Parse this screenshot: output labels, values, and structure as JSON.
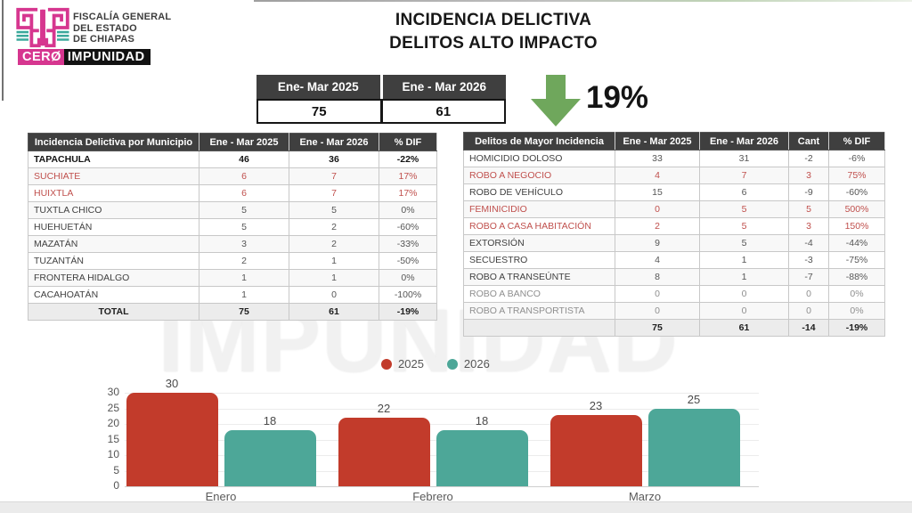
{
  "logo": {
    "org_line1": "FISCALÍA GENERAL",
    "org_line2": "DEL ESTADO",
    "org_line3": "DE CHIAPAS",
    "badge_cero": "CERØ",
    "badge_impunidad": "IMPUNIDAD"
  },
  "title": {
    "line1": "INCIDENCIA DELICTIVA",
    "line2": "DELITOS ALTO IMPACTO"
  },
  "summary": {
    "headers": [
      "Ene- Mar 2025",
      "Ene - Mar 2026"
    ],
    "values": [
      "75",
      "61"
    ],
    "change_pct": "19%",
    "direction": "down"
  },
  "municipio_table": {
    "headers": [
      "Incidencia Delictiva por Municipio",
      "Ene - Mar 2025",
      "Ene - Mar 2026",
      "% DIF"
    ],
    "rows": [
      {
        "name": "TAPACHULA",
        "v2025": "46",
        "v2026": "36",
        "dif": "-22%",
        "style": "bold"
      },
      {
        "name": "SUCHIATE",
        "v2025": "6",
        "v2026": "7",
        "dif": "17%",
        "style": "red"
      },
      {
        "name": "HUIXTLA",
        "v2025": "6",
        "v2026": "7",
        "dif": "17%",
        "style": "red"
      },
      {
        "name": "TUXTLA CHICO",
        "v2025": "5",
        "v2026": "5",
        "dif": "0%",
        "style": "normal"
      },
      {
        "name": "HUEHUETÁN",
        "v2025": "5",
        "v2026": "2",
        "dif": "-60%",
        "style": "normal"
      },
      {
        "name": "MAZATÁN",
        "v2025": "3",
        "v2026": "2",
        "dif": "-33%",
        "style": "normal"
      },
      {
        "name": "TUZANTÁN",
        "v2025": "2",
        "v2026": "1",
        "dif": "-50%",
        "style": "normal"
      },
      {
        "name": "FRONTERA HIDALGO",
        "v2025": "1",
        "v2026": "1",
        "dif": "0%",
        "style": "normal"
      },
      {
        "name": "CACAHOATÁN",
        "v2025": "1",
        "v2026": "0",
        "dif": "-100%",
        "style": "normal"
      }
    ],
    "total": {
      "name": "TOTAL",
      "v2025": "75",
      "v2026": "61",
      "dif": "-19%"
    }
  },
  "delitos_table": {
    "headers": [
      "Delitos de Mayor Incidencia",
      "Ene - Mar 2025",
      "Ene - Mar 2026",
      "Cant",
      "% DIF"
    ],
    "rows": [
      {
        "name": "HOMICIDIO DOLOSO",
        "v2025": "33",
        "v2026": "31",
        "cant": "-2",
        "dif": "-6%",
        "style": "normal"
      },
      {
        "name": "ROBO A NEGOCIO",
        "v2025": "4",
        "v2026": "7",
        "cant": "3",
        "dif": "75%",
        "style": "red"
      },
      {
        "name": "ROBO DE VEHÍCULO",
        "v2025": "15",
        "v2026": "6",
        "cant": "-9",
        "dif": "-60%",
        "style": "normal"
      },
      {
        "name": "FEMINICIDIO",
        "v2025": "0",
        "v2026": "5",
        "cant": "5",
        "dif": "500%",
        "style": "red"
      },
      {
        "name": "ROBO A CASA HABITACIÓN",
        "v2025": "2",
        "v2026": "5",
        "cant": "3",
        "dif": "150%",
        "style": "red"
      },
      {
        "name": "EXTORSIÓN",
        "v2025": "9",
        "v2026": "5",
        "cant": "-4",
        "dif": "-44%",
        "style": "normal"
      },
      {
        "name": "SECUESTRO",
        "v2025": "4",
        "v2026": "1",
        "cant": "-3",
        "dif": "-75%",
        "style": "normal"
      },
      {
        "name": "ROBO A TRANSEÚNTE",
        "v2025": "8",
        "v2026": "1",
        "cant": "-7",
        "dif": "-88%",
        "style": "normal"
      },
      {
        "name": "ROBO A BANCO",
        "v2025": "0",
        "v2026": "0",
        "cant": "0",
        "dif": "0%",
        "style": "muted"
      },
      {
        "name": "ROBO A TRANSPORTISTA",
        "v2025": "0",
        "v2026": "0",
        "cant": "0",
        "dif": "0%",
        "style": "muted"
      }
    ],
    "total": {
      "name": "",
      "v2025": "75",
      "v2026": "61",
      "cant": "-14",
      "dif": "-19%"
    }
  },
  "watermark": "IMPUNIDAD",
  "chart_data": {
    "type": "bar",
    "categories": [
      "Enero",
      "Febrero",
      "Marzo"
    ],
    "series": [
      {
        "name": "2025",
        "color": "#c23b2b",
        "values": [
          30,
          22,
          23
        ]
      },
      {
        "name": "2026",
        "color": "#4da798",
        "values": [
          18,
          18,
          25
        ]
      }
    ],
    "ylim": [
      0,
      30
    ],
    "yticks": [
      0,
      5,
      10,
      15,
      20,
      25,
      30
    ],
    "grid": true,
    "legend_position": "top"
  },
  "colors": {
    "header_bg": "#3f3f3f",
    "red_text": "#c0504d",
    "muted_text": "#8f8f8f",
    "bar_red": "#c23b2b",
    "bar_teal": "#4da798",
    "arrow_green": "#6fa75c",
    "brand_pink": "#d6368f",
    "brand_teal": "#3ba99c"
  }
}
